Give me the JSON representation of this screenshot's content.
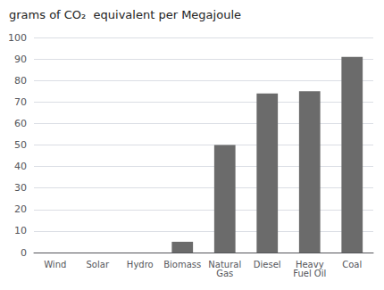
{
  "chart_data": {
    "type": "bar",
    "title": "grams of CO₂  equivalent per Megajoule",
    "categories": [
      "Wind",
      "Solar",
      "Hydro",
      "Biomass",
      "Natural\nGas",
      "Diesel",
      "Heavy\nFuel Oil",
      "Coal"
    ],
    "values": [
      0,
      0,
      0,
      5,
      50,
      74,
      75,
      91
    ],
    "color": "#6b6b6b",
    "ylim": [
      0,
      100
    ],
    "yticks": [
      0,
      10,
      20,
      30,
      40,
      50,
      60,
      70,
      80,
      90,
      100
    ],
    "grid": true
  }
}
